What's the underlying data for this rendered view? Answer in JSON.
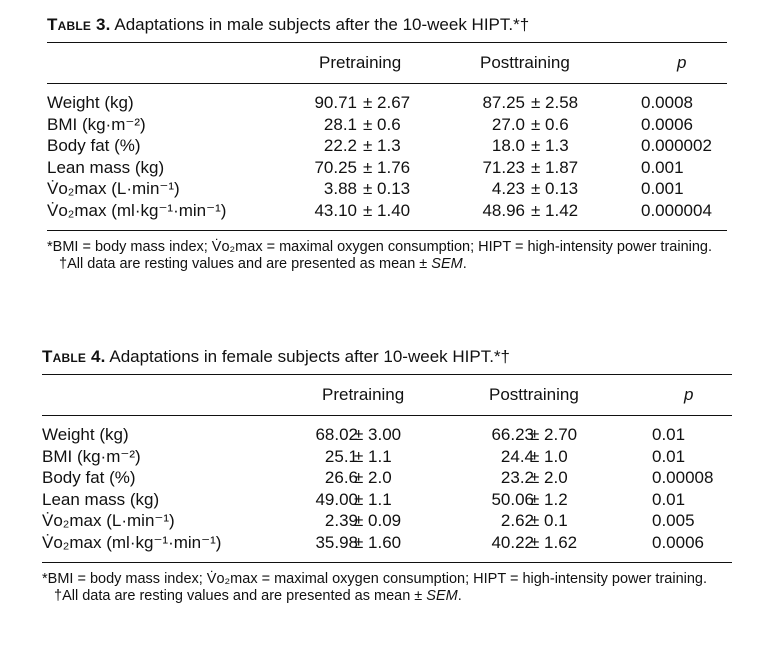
{
  "tables": [
    {
      "label": "Table 3.",
      "title": "Adaptations in male subjects after the 10-week HIPT.*†",
      "columns": [
        "Pretraining",
        "Posttraining",
        "p"
      ],
      "rows": [
        {
          "label": "Weight (kg)",
          "pre_mean": "90.71",
          "pre_sem": "± 2.67",
          "post_mean": "87.25",
          "post_sem": "± 2.58",
          "p": "0.0008"
        },
        {
          "label": "BMI (kg·m⁻²)",
          "pre_mean": "28.1",
          "pre_sem": "± 0.6",
          "post_mean": "27.0",
          "post_sem": "± 0.6",
          "p": "0.0006"
        },
        {
          "label": "Body fat (%)",
          "pre_mean": "22.2",
          "pre_sem": "± 1.3",
          "post_mean": "18.0",
          "post_sem": "± 1.3",
          "p": "0.000002"
        },
        {
          "label": "Lean mass (kg)",
          "pre_mean": "70.25",
          "pre_sem": "± 1.76",
          "post_mean": "71.23",
          "post_sem": "± 1.87",
          "p": "0.001"
        },
        {
          "label": "V̇o₂max (L·min⁻¹)",
          "pre_mean": "3.88",
          "pre_sem": "± 0.13",
          "post_mean": "4.23",
          "post_sem": "± 0.13",
          "p": "0.001"
        },
        {
          "label": "V̇o₂max (ml·kg⁻¹·min⁻¹)",
          "pre_mean": "43.10",
          "pre_sem": "± 1.40",
          "post_mean": "48.96",
          "post_sem": "± 1.42",
          "p": "0.000004"
        }
      ],
      "note1": "*BMI = body mass index; V̇o₂max = maximal oxygen consumption; HIPT = high-intensity power training.",
      "note2_prefix": "†All data are resting values and are presented as mean ± ",
      "note2_em": "SEM",
      "note2_suffix": "."
    },
    {
      "label": "Table 4.",
      "title": "Adaptations in female subjects after 10-week HIPT.*†",
      "columns": [
        "Pretraining",
        "Posttraining",
        "p"
      ],
      "rows": [
        {
          "label": "Weight (kg)",
          "pre_mean": "68.02",
          "pre_sem": "± 3.00",
          "post_mean": "66.23",
          "post_sem": "± 2.70",
          "p": "0.01"
        },
        {
          "label": "BMI (kg·m⁻²)",
          "pre_mean": "25.1",
          "pre_sem": "± 1.1",
          "post_mean": "24.4",
          "post_sem": "± 1.0",
          "p": "0.01"
        },
        {
          "label": "Body fat (%)",
          "pre_mean": "26.6",
          "pre_sem": "± 2.0",
          "post_mean": "23.2",
          "post_sem": "± 2.0",
          "p": "0.00008"
        },
        {
          "label": "Lean mass (kg)",
          "pre_mean": "49.00",
          "pre_sem": "± 1.1",
          "post_mean": "50.06",
          "post_sem": "± 1.2",
          "p": "0.01"
        },
        {
          "label": "V̇o₂max (L·min⁻¹)",
          "pre_mean": "2.39",
          "pre_sem": "± 0.09",
          "post_mean": "2.62",
          "post_sem": "± 0.1",
          "p": "0.005"
        },
        {
          "label": "V̇o₂max (ml·kg⁻¹·min⁻¹)",
          "pre_mean": "35.98",
          "pre_sem": "± 1.60",
          "post_mean": "40.22",
          "post_sem": "± 1.62",
          "p": "0.0006"
        }
      ],
      "note1": "*BMI = body mass index; V̇o₂max = maximal oxygen consumption; HIPT = high-intensity power training.",
      "note2_prefix": "†All data are resting values and are presented as mean ± ",
      "note2_em": "SEM",
      "note2_suffix": "."
    }
  ]
}
